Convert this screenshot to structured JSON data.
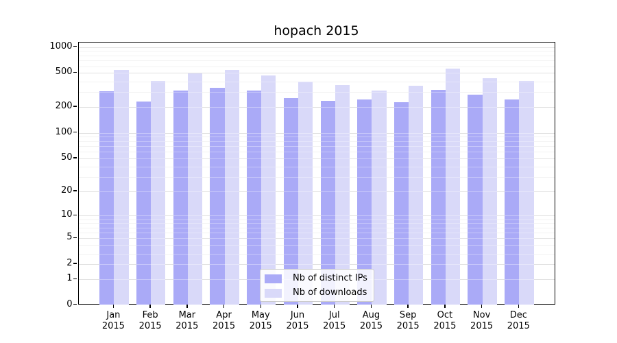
{
  "title": "hopach 2015",
  "colors": {
    "distinct_ips": "#aaaaf7",
    "downloads": "#d9d9f9",
    "grid_major": "#d2d2d2",
    "grid_minor": "#ececec",
    "axis": "#000000",
    "legend_border": "#cccccc"
  },
  "legend": {
    "items": [
      {
        "label": "Nb of distinct IPs",
        "color": "#aaaaf7"
      },
      {
        "label": "Nb of downloads",
        "color": "#d9d9f9"
      }
    ]
  },
  "y_axis": {
    "tick_labels": [
      "1000",
      "500",
      "200",
      "100",
      "50",
      "20",
      "10",
      "5",
      "2",
      "1",
      "0"
    ]
  },
  "x_axis": {
    "tick_labels": [
      "Jan\n2015",
      "Feb\n2015",
      "Mar\n2015",
      "Apr\n2015",
      "May\n2015",
      "Jun\n2015",
      "Jul\n2015",
      "Aug\n2015",
      "Sep\n2015",
      "Oct\n2015",
      "Nov\n2015",
      "Dec\n2015"
    ]
  },
  "chart_data": {
    "type": "bar",
    "title": "hopach 2015",
    "categories": [
      "Jan 2015",
      "Feb 2015",
      "Mar 2015",
      "Apr 2015",
      "May 2015",
      "Jun 2015",
      "Jul 2015",
      "Aug 2015",
      "Sep 2015",
      "Oct 2015",
      "Nov 2015",
      "Dec 2015"
    ],
    "series": [
      {
        "name": "Nb of distinct IPs",
        "color": "#aaaaf7",
        "values": [
          308,
          232,
          315,
          339,
          314,
          257,
          238,
          245,
          228,
          319,
          282,
          247
        ]
      },
      {
        "name": "Nb of downloads",
        "color": "#d9d9f9",
        "values": [
          542,
          406,
          498,
          540,
          468,
          398,
          363,
          315,
          356,
          567,
          436,
          405
        ]
      }
    ],
    "xlabel": "",
    "ylabel": "",
    "yscale": "log10(1+v)",
    "yticks": [
      0,
      1,
      2,
      5,
      10,
      20,
      50,
      100,
      200,
      500,
      1000
    ],
    "minor_gridlines": [
      3,
      4,
      6,
      7,
      8,
      9,
      30,
      40,
      60,
      70,
      80,
      90,
      300,
      400,
      600,
      700,
      800,
      900
    ],
    "ylim": [
      0,
      1140
    ],
    "grid": true,
    "legend_position": "lower center"
  }
}
